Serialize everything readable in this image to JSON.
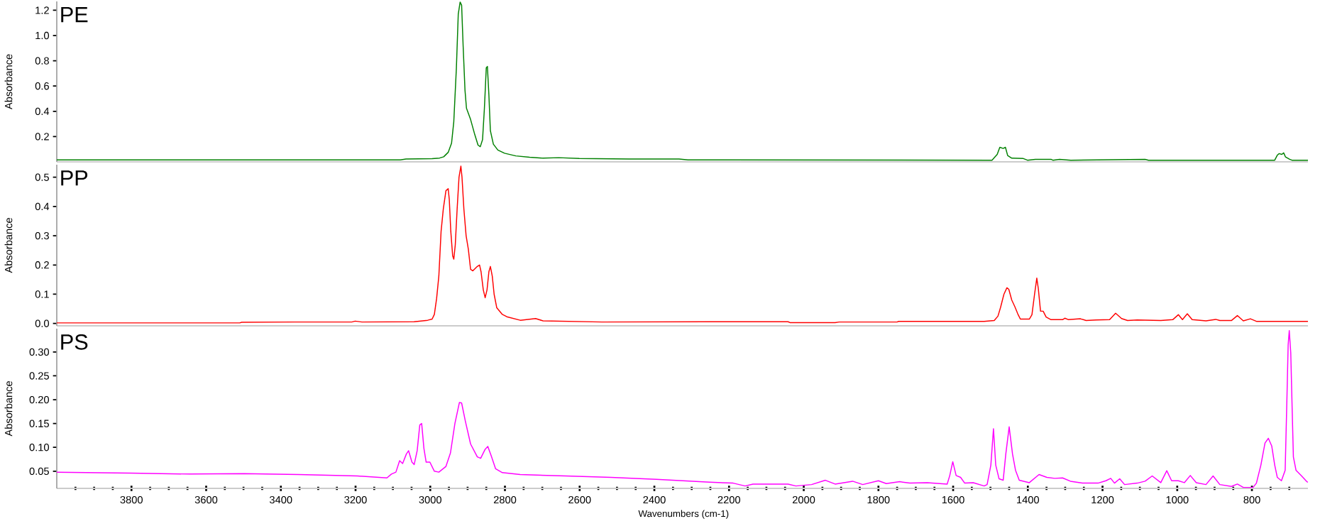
{
  "chart_data": [
    {
      "type": "line",
      "title": "PE",
      "ylabel": "Absorbance",
      "color": "#008000",
      "tick_labels": "y",
      "xlim": [
        4000,
        650
      ],
      "ylim": [
        0,
        1.27
      ],
      "yticks": [
        0.2,
        0.4,
        0.6,
        0.8,
        {
          "value": 1,
          "label": "1.0"
        },
        1.2
      ],
      "x": [
        4000,
        3080,
        3065,
        2995,
        2975,
        2964,
        2952,
        2943,
        2937,
        2930,
        2925,
        2920,
        2916,
        2912,
        2907,
        2903,
        2892,
        2882,
        2872,
        2866,
        2860,
        2855,
        2850,
        2847,
        2843,
        2839,
        2831,
        2819,
        2801,
        2771,
        2734,
        2698,
        2656,
        2601,
        2468,
        2334,
        2310,
        1496,
        1482,
        1475,
        1466,
        1460,
        1454,
        1443,
        1412,
        1401,
        1380,
        1338,
        1333,
        1315,
        1285,
        1086,
        1077,
        739,
        732,
        727,
        720,
        715,
        710,
        699,
        693,
        650
      ],
      "values": [
        0.015,
        0.015,
        0.022,
        0.025,
        0.03,
        0.04,
        0.075,
        0.147,
        0.317,
        0.745,
        1.17,
        1.265,
        1.24,
        0.92,
        0.567,
        0.424,
        0.335,
        0.228,
        0.132,
        0.12,
        0.175,
        0.424,
        0.745,
        0.755,
        0.53,
        0.246,
        0.14,
        0.093,
        0.068,
        0.047,
        0.036,
        0.029,
        0.033,
        0.026,
        0.022,
        0.022,
        0.015,
        0.013,
        0.059,
        0.115,
        0.106,
        0.115,
        0.05,
        0.029,
        0.026,
        0.013,
        0.02,
        0.02,
        0.013,
        0.02,
        0.013,
        0.02,
        0.013,
        0.013,
        0.053,
        0.065,
        0.059,
        0.071,
        0.038,
        0.02,
        0.013,
        0.013
      ]
    },
    {
      "type": "line",
      "title": "PP",
      "ylabel": "Absorbance",
      "color": "#ff0000",
      "tick_labels": "y",
      "xlim": [
        4000,
        650
      ],
      "ylim": [
        -0.008,
        0.543
      ],
      "yticks": [
        {
          "value": 0,
          "label": "0.0"
        },
        0.1,
        0.2,
        0.3,
        0.4,
        0.5
      ],
      "x": [
        4000,
        3510,
        3505,
        3364,
        3210,
        3201,
        3183,
        3043,
        3007,
        2995,
        2989,
        2983,
        2977,
        2971,
        2965,
        2958,
        2952,
        2949,
        2945,
        2940,
        2937,
        2933,
        2928,
        2923,
        2918,
        2915,
        2910,
        2904,
        2898,
        2892,
        2886,
        2874,
        2868,
        2864,
        2858,
        2853,
        2848,
        2843,
        2839,
        2834,
        2829,
        2822,
        2807,
        2795,
        2759,
        2718,
        2698,
        2540,
        2252,
        2042,
        2037,
        1916,
        1905,
        1750,
        1746,
        1517,
        1490,
        1480,
        1473,
        1464,
        1456,
        1451,
        1443,
        1435,
        1427,
        1420,
        1396,
        1389,
        1382,
        1376,
        1372,
        1366,
        1359,
        1351,
        1338,
        1307,
        1301,
        1291,
        1259,
        1244,
        1217,
        1181,
        1165,
        1149,
        1133,
        1107,
        1044,
        1012,
        997,
        986,
        973,
        960,
        923,
        897,
        886,
        855,
        839,
        823,
        804,
        787,
        650
      ],
      "values": [
        0.002,
        0.002,
        0.004,
        0.005,
        0.005,
        0.008,
        0.005,
        0.006,
        0.011,
        0.015,
        0.031,
        0.085,
        0.162,
        0.315,
        0.392,
        0.454,
        0.461,
        0.423,
        0.315,
        0.231,
        0.22,
        0.269,
        0.392,
        0.5,
        0.538,
        0.5,
        0.392,
        0.3,
        0.254,
        0.185,
        0.18,
        0.195,
        0.2,
        0.177,
        0.115,
        0.088,
        0.115,
        0.177,
        0.195,
        0.162,
        0.1,
        0.054,
        0.031,
        0.023,
        0.011,
        0.017,
        0.009,
        0.005,
        0.006,
        0.006,
        0.003,
        0.003,
        0.005,
        0.005,
        0.007,
        0.007,
        0.01,
        0.025,
        0.055,
        0.1,
        0.122,
        0.117,
        0.08,
        0.058,
        0.033,
        0.015,
        0.015,
        0.03,
        0.1,
        0.155,
        0.12,
        0.042,
        0.042,
        0.022,
        0.013,
        0.013,
        0.018,
        0.013,
        0.016,
        0.01,
        0.012,
        0.013,
        0.035,
        0.017,
        0.01,
        0.012,
        0.01,
        0.013,
        0.03,
        0.013,
        0.033,
        0.013,
        0.009,
        0.014,
        0.01,
        0.01,
        0.027,
        0.009,
        0.016,
        0.007,
        0.007
      ]
    },
    {
      "type": "line",
      "title": "PS",
      "ylabel": "Absorbance",
      "xlabel": "Wavenumbers (cm-1)",
      "color": "#ff00ff",
      "xlim": [
        4000,
        650
      ],
      "ylim": [
        0.014,
        0.349
      ],
      "yticks": [
        0.05,
        {
          "value": 0.1,
          "label": "0.10"
        },
        0.15,
        {
          "value": 0.2,
          "label": "0.20"
        },
        0.25,
        {
          "value": 0.3,
          "label": "0.30"
        }
      ],
      "xticks": [
        {
          "value": 3950,
          "label": null
        },
        {
          "value": 3900,
          "label": null
        },
        {
          "value": 3850,
          "label": null
        },
        3800,
        {
          "value": 3750,
          "label": null
        },
        {
          "value": 3700,
          "label": null
        },
        {
          "value": 3650,
          "label": null
        },
        3600,
        {
          "value": 3550,
          "label": null
        },
        {
          "value": 3500,
          "label": null
        },
        {
          "value": 3450,
          "label": null
        },
        3400,
        {
          "value": 3350,
          "label": null
        },
        {
          "value": 3300,
          "label": null
        },
        {
          "value": 3250,
          "label": null
        },
        3200,
        {
          "value": 3150,
          "label": null
        },
        {
          "value": 3100,
          "label": null
        },
        {
          "value": 3050,
          "label": null
        },
        3000,
        {
          "value": 2950,
          "label": null
        },
        {
          "value": 2900,
          "label": null
        },
        {
          "value": 2850,
          "label": null
        },
        2800,
        {
          "value": 2750,
          "label": null
        },
        {
          "value": 2700,
          "label": null
        },
        {
          "value": 2650,
          "label": null
        },
        2600,
        {
          "value": 2550,
          "label": null
        },
        {
          "value": 2500,
          "label": null
        },
        {
          "value": 2450,
          "label": null
        },
        2400,
        {
          "value": 2350,
          "label": null
        },
        {
          "value": 2300,
          "label": null
        },
        {
          "value": 2250,
          "label": null
        },
        2200,
        {
          "value": 2150,
          "label": null
        },
        {
          "value": 2100,
          "label": null
        },
        {
          "value": 2050,
          "label": null
        },
        2000,
        {
          "value": 1950,
          "label": null
        },
        {
          "value": 1900,
          "label": null
        },
        {
          "value": 1850,
          "label": null
        },
        1800,
        {
          "value": 1750,
          "label": null
        },
        {
          "value": 1700,
          "label": null
        },
        {
          "value": 1650,
          "label": null
        },
        1600,
        {
          "value": 1550,
          "label": null
        },
        {
          "value": 1500,
          "label": null
        },
        {
          "value": 1450,
          "label": null
        },
        1400,
        {
          "value": 1350,
          "label": null
        },
        {
          "value": 1300,
          "label": null
        },
        {
          "value": 1250,
          "label": null
        },
        1200,
        {
          "value": 1150,
          "label": null
        },
        {
          "value": 1100,
          "label": null
        },
        {
          "value": 1050,
          "label": null
        },
        1000,
        {
          "value": 950,
          "label": null
        },
        {
          "value": 900,
          "label": null
        },
        {
          "value": 850,
          "label": null
        },
        800,
        {
          "value": 750,
          "label": null
        },
        {
          "value": 700,
          "label": null
        }
      ],
      "x": [
        4000,
        3801,
        3643,
        3498,
        3352,
        3195,
        3116,
        3104,
        3092,
        3082,
        3074,
        3064,
        3058,
        3049,
        3043,
        3035,
        3028,
        3023,
        3017,
        3011,
        3001,
        2989,
        2977,
        2958,
        2946,
        2934,
        2922,
        2916,
        2906,
        2892,
        2874,
        2865,
        2853,
        2846,
        2837,
        2825,
        2807,
        2759,
        2637,
        2516,
        2395,
        2252,
        2189,
        2157,
        2136,
        2042,
        2021,
        1979,
        1942,
        1916,
        1869,
        1842,
        1800,
        1779,
        1743,
        1716,
        1669,
        1616,
        1609,
        1601,
        1592,
        1580,
        1569,
        1546,
        1517,
        1509,
        1499,
        1492,
        1486,
        1477,
        1466,
        1459,
        1450,
        1441,
        1433,
        1423,
        1396,
        1370,
        1349,
        1328,
        1307,
        1286,
        1254,
        1212,
        1191,
        1178,
        1168,
        1154,
        1141,
        1107,
        1086,
        1067,
        1044,
        1028,
        1015,
        997,
        981,
        965,
        949,
        923,
        904,
        886,
        855,
        839,
        823,
        797,
        788,
        776,
        765,
        756,
        747,
        739,
        732,
        721,
        711,
        706,
        703,
        700,
        696,
        692,
        689,
        682,
        667,
        653,
        650
      ],
      "values": [
        0.048,
        0.046,
        0.044,
        0.045,
        0.043,
        0.04,
        0.036,
        0.044,
        0.048,
        0.072,
        0.066,
        0.086,
        0.093,
        0.069,
        0.064,
        0.093,
        0.147,
        0.15,
        0.098,
        0.069,
        0.069,
        0.05,
        0.048,
        0.06,
        0.088,
        0.15,
        0.194,
        0.193,
        0.155,
        0.107,
        0.08,
        0.077,
        0.096,
        0.102,
        0.083,
        0.055,
        0.047,
        0.043,
        0.04,
        0.037,
        0.033,
        0.027,
        0.025,
        0.019,
        0.023,
        0.023,
        0.019,
        0.022,
        0.031,
        0.023,
        0.029,
        0.022,
        0.03,
        0.024,
        0.028,
        0.025,
        0.026,
        0.023,
        0.041,
        0.07,
        0.041,
        0.037,
        0.025,
        0.026,
        0.019,
        0.022,
        0.063,
        0.139,
        0.063,
        0.034,
        0.031,
        0.086,
        0.143,
        0.086,
        0.052,
        0.031,
        0.026,
        0.043,
        0.037,
        0.035,
        0.036,
        0.029,
        0.025,
        0.025,
        0.03,
        0.035,
        0.025,
        0.034,
        0.022,
        0.025,
        0.029,
        0.04,
        0.026,
        0.051,
        0.03,
        0.03,
        0.026,
        0.041,
        0.026,
        0.022,
        0.04,
        0.022,
        0.018,
        0.023,
        0.016,
        0.016,
        0.025,
        0.063,
        0.109,
        0.119,
        0.103,
        0.063,
        0.037,
        0.03,
        0.052,
        0.212,
        0.315,
        0.345,
        0.298,
        0.172,
        0.08,
        0.052,
        0.04,
        0.028,
        0.027
      ]
    }
  ]
}
